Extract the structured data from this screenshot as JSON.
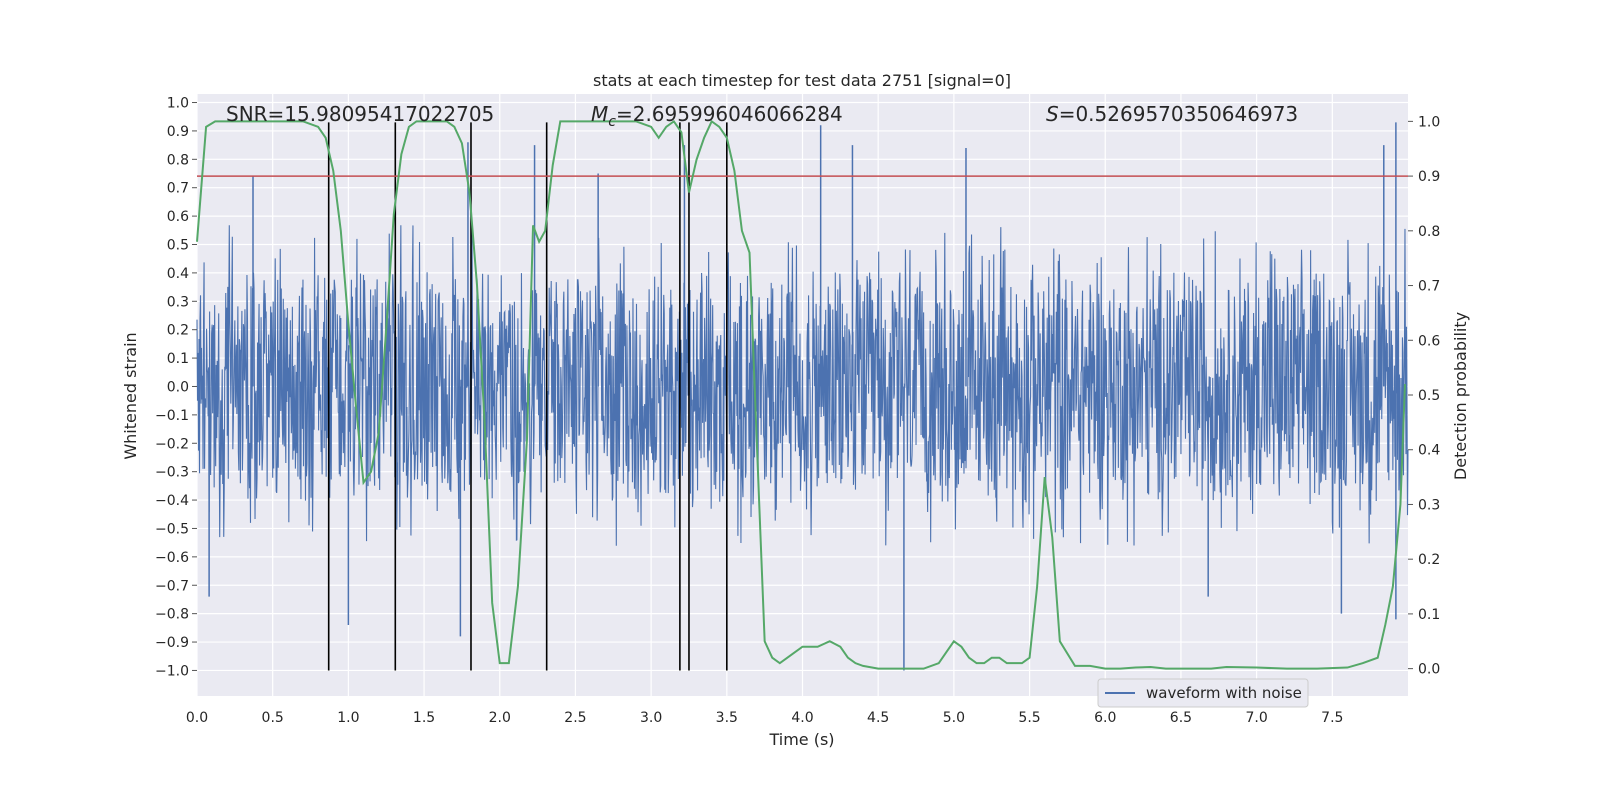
{
  "chart_data": {
    "type": "line",
    "title": "stats at each timestep for test data 2751 [signal=0]",
    "xlabel": "Time (s)",
    "ylabel_left": "Whitened strain",
    "ylabel_right": "Detection probability",
    "xlim": [
      0.0,
      8.0
    ],
    "ylim_left": [
      -1.09,
      1.03
    ],
    "ylim_right": [
      -0.05,
      1.05
    ],
    "x_ticks": [
      "0.0",
      "0.5",
      "1.0",
      "1.5",
      "2.0",
      "2.5",
      "3.0",
      "3.5",
      "4.0",
      "4.5",
      "5.0",
      "5.5",
      "6.0",
      "6.5",
      "7.0",
      "7.5"
    ],
    "x_tick_values": [
      0.0,
      0.5,
      1.0,
      1.5,
      2.0,
      2.5,
      3.0,
      3.5,
      4.0,
      4.5,
      5.0,
      5.5,
      6.0,
      6.5,
      7.0,
      7.5
    ],
    "y_left_ticks": [
      "1.0",
      "0.9",
      "0.8",
      "0.7",
      "0.6",
      "0.5",
      "0.4",
      "0.3",
      "0.2",
      "0.1",
      "0.0",
      "−0.1",
      "−0.2",
      "−0.3",
      "−0.4",
      "−0.5",
      "−0.6",
      "−0.7",
      "−0.8",
      "−0.9",
      "−1.0"
    ],
    "y_left_tick_values": [
      1.0,
      0.9,
      0.8,
      0.7,
      0.6,
      0.5,
      0.4,
      0.3,
      0.2,
      0.1,
      0.0,
      -0.1,
      -0.2,
      -0.3,
      -0.4,
      -0.5,
      -0.6,
      -0.7,
      -0.8,
      -0.9,
      -1.0
    ],
    "y_right_ticks": [
      "1.0",
      "0.9",
      "0.8",
      "0.7",
      "0.6",
      "0.5",
      "0.4",
      "0.3",
      "0.2",
      "0.1",
      "0.0"
    ],
    "y_right_tick_values": [
      1.0,
      0.9,
      0.8,
      0.7,
      0.6,
      0.5,
      0.4,
      0.3,
      0.2,
      0.1,
      0.0
    ],
    "annotations": {
      "snr": "SNR=15.98095417022705",
      "mc_symbol": "M",
      "mc_sub": "c",
      "mc_value": "=2.695996046066284",
      "s_symbol": "S",
      "s_value": "=0.5269570350646973"
    },
    "threshold": {
      "value": 0.9,
      "axis": "right",
      "color": "#c44e52"
    },
    "vertical_lines_x": [
      0.87,
      1.31,
      1.81,
      2.31,
      3.19,
      3.25,
      3.5
    ],
    "legend": {
      "label": "waveform with noise",
      "location": "lower-right"
    },
    "waveform": {
      "name": "waveform with noise",
      "color": "#4c72b0",
      "axis": "left",
      "x_start": 0.0,
      "x_end": 8.0,
      "typical_envelope": [
        -0.42,
        0.45
      ],
      "peak_values": [
        {
          "x": 0.08,
          "y": -0.74
        },
        {
          "x": 0.37,
          "y": 0.74
        },
        {
          "x": 1.0,
          "y": -0.84
        },
        {
          "x": 1.74,
          "y": -0.88
        },
        {
          "x": 1.79,
          "y": 0.86
        },
        {
          "x": 2.23,
          "y": 0.85
        },
        {
          "x": 2.65,
          "y": 0.75
        },
        {
          "x": 3.22,
          "y": 0.85
        },
        {
          "x": 4.12,
          "y": 0.92
        },
        {
          "x": 4.33,
          "y": 0.85
        },
        {
          "x": 4.67,
          "y": -1.0
        },
        {
          "x": 5.08,
          "y": 0.84
        },
        {
          "x": 6.68,
          "y": -0.74
        },
        {
          "x": 7.56,
          "y": -0.8
        },
        {
          "x": 7.84,
          "y": 0.85
        },
        {
          "x": 7.92,
          "y": 0.93
        },
        {
          "x": 7.92,
          "y": -0.82
        }
      ]
    },
    "probability": {
      "name": "detection probability",
      "color": "#55a868",
      "axis": "right",
      "x": [
        0.0,
        0.06,
        0.12,
        0.2,
        0.3,
        0.4,
        0.5,
        0.6,
        0.7,
        0.8,
        0.85,
        0.9,
        0.95,
        1.0,
        1.05,
        1.1,
        1.15,
        1.2,
        1.25,
        1.3,
        1.35,
        1.4,
        1.45,
        1.5,
        1.55,
        1.6,
        1.65,
        1.7,
        1.75,
        1.8,
        1.85,
        1.9,
        1.95,
        2.0,
        2.06,
        2.12,
        2.18,
        2.22,
        2.26,
        2.3,
        2.35,
        2.4,
        2.45,
        2.5,
        2.6,
        2.7,
        2.8,
        2.9,
        3.0,
        3.05,
        3.1,
        3.15,
        3.2,
        3.25,
        3.3,
        3.35,
        3.4,
        3.45,
        3.5,
        3.55,
        3.6,
        3.65,
        3.7,
        3.75,
        3.8,
        3.85,
        3.9,
        3.95,
        4.0,
        4.1,
        4.18,
        4.25,
        4.3,
        4.35,
        4.4,
        4.5,
        4.6,
        4.7,
        4.8,
        4.9,
        4.95,
        5.0,
        5.05,
        5.1,
        5.15,
        5.2,
        5.25,
        5.3,
        5.35,
        5.4,
        5.45,
        5.5,
        5.55,
        5.6,
        5.65,
        5.7,
        5.8,
        5.9,
        6.0,
        6.1,
        6.2,
        6.3,
        6.4,
        6.5,
        6.7,
        6.8,
        7.0,
        7.2,
        7.4,
        7.6,
        7.7,
        7.8,
        7.85,
        7.9,
        7.95,
        7.98
      ],
      "y": [
        0.78,
        0.99,
        1.0,
        1.0,
        1.0,
        1.0,
        1.0,
        1.0,
        1.0,
        0.99,
        0.97,
        0.91,
        0.8,
        0.63,
        0.48,
        0.34,
        0.36,
        0.43,
        0.62,
        0.83,
        0.94,
        0.99,
        1.0,
        1.0,
        1.0,
        1.0,
        1.0,
        0.99,
        0.96,
        0.87,
        0.7,
        0.45,
        0.12,
        0.01,
        0.01,
        0.15,
        0.42,
        0.81,
        0.78,
        0.8,
        0.92,
        1.0,
        1.0,
        1.0,
        1.0,
        1.0,
        1.0,
        1.0,
        0.99,
        0.97,
        0.99,
        1.0,
        0.98,
        0.87,
        0.93,
        0.97,
        1.0,
        0.99,
        0.97,
        0.91,
        0.8,
        0.76,
        0.4,
        0.05,
        0.02,
        0.01,
        0.02,
        0.03,
        0.04,
        0.04,
        0.05,
        0.04,
        0.02,
        0.01,
        0.005,
        0.0,
        0.0,
        0.0,
        0.0,
        0.01,
        0.03,
        0.05,
        0.04,
        0.02,
        0.01,
        0.01,
        0.02,
        0.02,
        0.01,
        0.01,
        0.01,
        0.02,
        0.15,
        0.35,
        0.24,
        0.05,
        0.005,
        0.005,
        0.0,
        0.0,
        0.002,
        0.003,
        0.0,
        0.0,
        0.0,
        0.003,
        0.002,
        0.0,
        0.0,
        0.002,
        0.01,
        0.02,
        0.08,
        0.15,
        0.3,
        0.52
      ]
    }
  }
}
